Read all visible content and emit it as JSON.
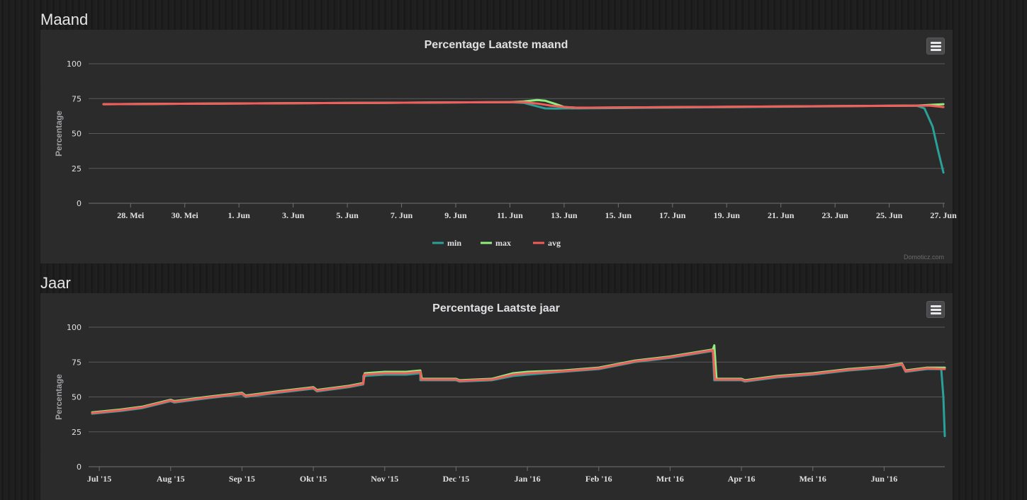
{
  "sections": {
    "month_heading": "Maand",
    "year_heading": "Jaar"
  },
  "credit": "Domoticz.com",
  "colors": {
    "min": "#2aa198",
    "max": "#90ee7e",
    "avg": "#f45b5b",
    "panel_bg": "#2b2b2c"
  },
  "chart_data": [
    {
      "type": "line",
      "title": "Percentage Laatste maand",
      "ylabel": "Percentage",
      "ylim": [
        0,
        100
      ],
      "yticks": [
        0,
        25,
        50,
        75,
        100
      ],
      "xlim": [
        26.4,
        27.5
      ],
      "x_tick_labels": [
        "28. Mei",
        "30. Mei",
        "1. Jun",
        "3. Jun",
        "5. Jun",
        "7. Jun",
        "9. Jun",
        "11. Jun",
        "13. Jun",
        "15. Jun",
        "17. Jun",
        "19. Jun",
        "21. Jun",
        "23. Jun",
        "25. Jun",
        "27. Jun"
      ],
      "x_tick_positions": [
        1,
        3,
        5,
        7,
        9,
        11,
        13,
        15,
        17,
        19,
        21,
        23,
        25,
        27,
        29,
        31
      ],
      "x_range_days": [
        -0.55,
        31.05
      ],
      "legend": [
        "min",
        "max",
        "avg"
      ],
      "legend_position": "bottom-center",
      "series": [
        {
          "name": "min",
          "x": [
            0,
            5,
            10,
            15,
            15.5,
            16,
            16.3,
            16.7,
            17,
            17.5,
            30,
            30.3,
            30.6,
            30.8,
            31
          ],
          "y": [
            71,
            71.5,
            72,
            72.5,
            72,
            69.5,
            68,
            67.8,
            68,
            68,
            70,
            68,
            55,
            38,
            22
          ]
        },
        {
          "name": "max",
          "x": [
            0,
            5,
            10,
            15,
            15.5,
            16,
            16.3,
            16.7,
            17,
            17.5,
            30,
            30.5,
            31
          ],
          "y": [
            71,
            71.5,
            72,
            72.5,
            73,
            74,
            73.5,
            71,
            69,
            68.5,
            70,
            70.5,
            71
          ]
        },
        {
          "name": "avg",
          "x": [
            0,
            5,
            10,
            15,
            15.5,
            16,
            16.5,
            17,
            17.5,
            30,
            30.5,
            31
          ],
          "y": [
            71,
            71.5,
            72,
            72.5,
            72.5,
            71.5,
            70,
            69,
            68.5,
            70,
            70,
            69
          ]
        }
      ]
    },
    {
      "type": "line",
      "title": "Percentage Laatste jaar",
      "ylabel": "Percentage",
      "ylim": [
        0,
        100
      ],
      "yticks": [
        0,
        25,
        50,
        75,
        100
      ],
      "x_tick_labels": [
        "Jul '15",
        "Aug '15",
        "Sep '15",
        "Okt '15",
        "Nov '15",
        "Dec '15",
        "Jan '16",
        "Feb '16",
        "Mrt '16",
        "Apr '16",
        "Mei '16",
        "Jun '16"
      ],
      "x_tick_positions": [
        0,
        1,
        2,
        3,
        4,
        5,
        6,
        7,
        8,
        9,
        10,
        11
      ],
      "x_range_months": [
        -0.15,
        11.85
      ],
      "legend": [
        "min",
        "max",
        "avg"
      ],
      "series": [
        {
          "name": "min",
          "x": [
            -0.1,
            0.3,
            0.6,
            1.0,
            1.05,
            1.5,
            2.0,
            2.05,
            2.5,
            3.0,
            3.05,
            3.5,
            3.7,
            3.7,
            4.0,
            4.3,
            4.5,
            4.5,
            5.0,
            5.05,
            5.5,
            5.8,
            6.0,
            6.5,
            7.0,
            7.5,
            8.0,
            8.6,
            8.62,
            9.0,
            9.05,
            9.5,
            10.0,
            10.5,
            11.0,
            11.25,
            11.3,
            11.6,
            11.8,
            11.83,
            11.85
          ],
          "y": [
            38,
            40,
            42,
            47,
            46,
            49,
            52,
            50,
            53,
            56,
            54,
            57,
            59,
            65,
            66,
            66,
            67,
            62,
            62,
            61,
            62,
            65,
            66,
            68,
            70,
            75,
            78,
            83,
            62,
            62,
            61,
            64,
            66,
            69,
            71,
            73,
            68,
            70,
            70,
            50,
            22
          ]
        },
        {
          "name": "max",
          "x": [
            -0.1,
            0.3,
            0.6,
            1.0,
            1.05,
            1.5,
            2.0,
            2.05,
            2.5,
            3.0,
            3.05,
            3.5,
            3.7,
            3.72,
            4.0,
            4.3,
            4.5,
            4.52,
            5.0,
            5.05,
            5.5,
            5.8,
            6.0,
            6.5,
            7.0,
            7.5,
            8.0,
            8.6,
            8.62,
            8.65,
            9.0,
            9.05,
            9.5,
            10.0,
            10.5,
            11.0,
            11.25,
            11.3,
            11.6,
            11.85
          ],
          "y": [
            39,
            41,
            43,
            48,
            47,
            50,
            53,
            51,
            54,
            57,
            55,
            58,
            60,
            67,
            68,
            68,
            69,
            63,
            63,
            62,
            63,
            67,
            68,
            69,
            71,
            76,
            79,
            84,
            87,
            63,
            63,
            62,
            65,
            67,
            70,
            72,
            74,
            69,
            71,
            71
          ]
        },
        {
          "name": "avg",
          "x": [
            -0.1,
            0.3,
            0.6,
            1.0,
            1.05,
            1.5,
            2.0,
            2.05,
            2.5,
            3.0,
            3.05,
            3.5,
            3.7,
            3.71,
            4.0,
            4.3,
            4.5,
            4.51,
            5.0,
            5.05,
            5.5,
            5.8,
            6.0,
            6.5,
            7.0,
            7.5,
            8.0,
            8.6,
            8.63,
            9.0,
            9.05,
            9.5,
            10.0,
            10.5,
            11.0,
            11.25,
            11.3,
            11.6,
            11.85
          ],
          "y": [
            38.5,
            40.5,
            42.5,
            47.5,
            46.5,
            49.5,
            52.5,
            50.5,
            53.5,
            56.5,
            54.5,
            57.5,
            59.5,
            66,
            67,
            67,
            68,
            62.5,
            62.5,
            61.5,
            62.5,
            66,
            67,
            68.5,
            70.5,
            75.5,
            78.5,
            83.5,
            62.5,
            62.5,
            61.5,
            64.5,
            66.5,
            69.5,
            71.5,
            73.5,
            68.5,
            70.5,
            70
          ]
        }
      ]
    }
  ]
}
